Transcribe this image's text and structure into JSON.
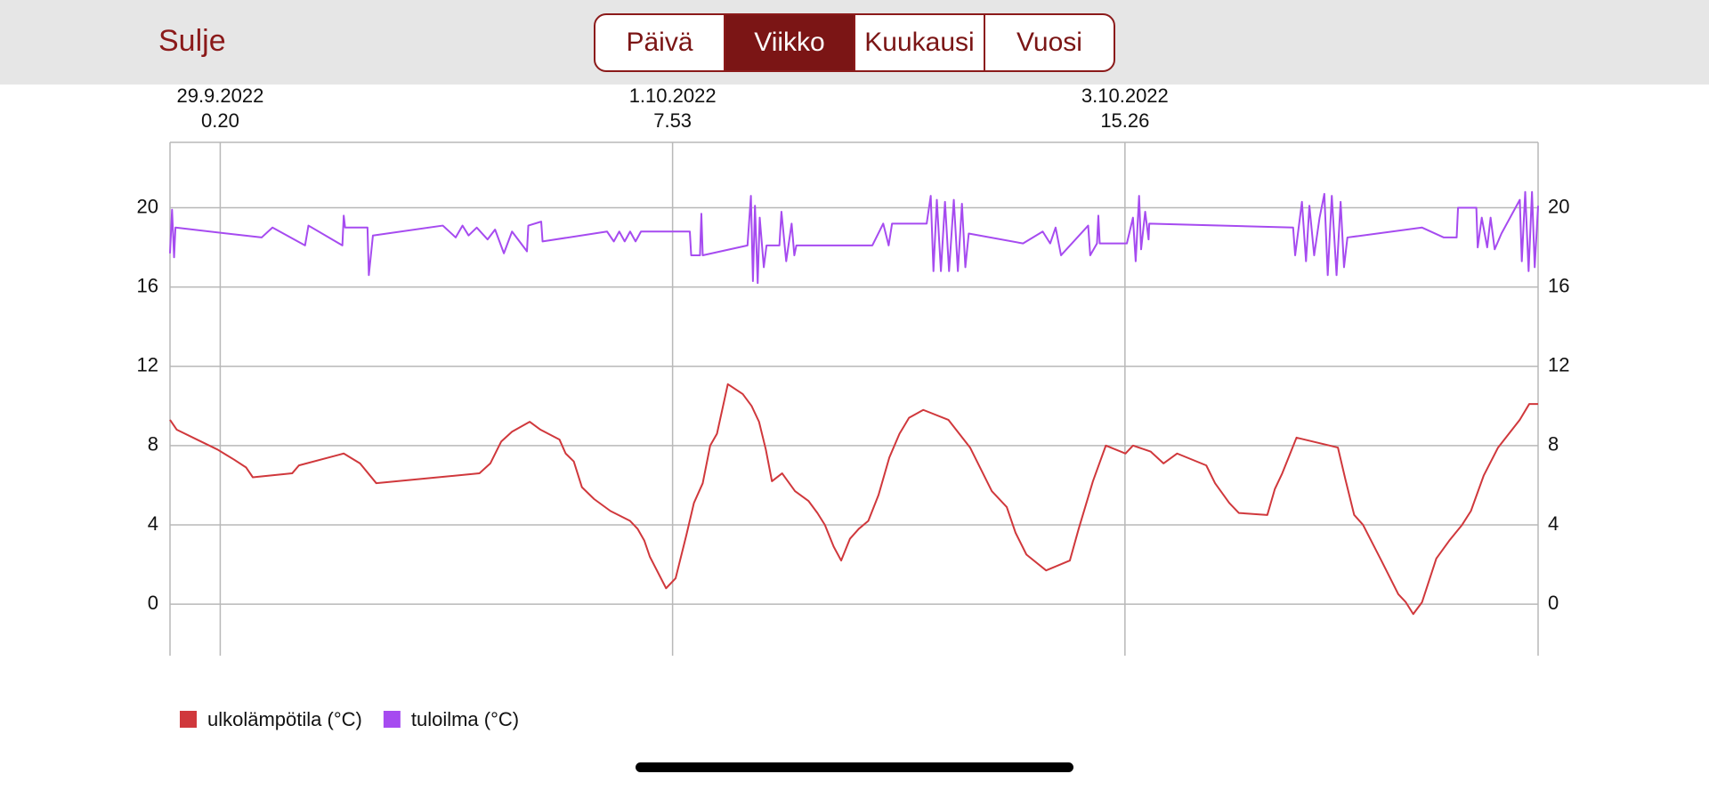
{
  "header": {
    "close_button": "Sulje",
    "tabs": [
      "Päivä",
      "Viikko",
      "Kuukausi",
      "Vuosi"
    ],
    "selected_tab": 1
  },
  "chart_data": {
    "type": "line",
    "grid": true,
    "legend": "bottom-left",
    "xlim": [
      "2022-09-28T18:10",
      "2022-10-05T18:10"
    ],
    "xticks": [
      {
        "value": "2022-09-29T00:20",
        "label": [
          "29.9.2022",
          "0.20"
        ]
      },
      {
        "value": "2022-10-01T07:53",
        "label": [
          "1.10.2022",
          "7.53"
        ]
      },
      {
        "value": "2022-10-03T15:26",
        "label": [
          "3.10.2022",
          "15.26"
        ]
      }
    ],
    "ylim": [
      -2.6,
      23.3
    ],
    "yticks": [
      0,
      4,
      8,
      12,
      16,
      20
    ],
    "y2lim": [
      -2.6,
      23.3
    ],
    "y2ticks": [
      0,
      4,
      8,
      12,
      16,
      20
    ],
    "series": [
      {
        "name": "ulkolämpötila (°C)",
        "color": "#d0383c",
        "x": [
          "2022-09-28T18:10",
          "2022-09-28T19:00",
          "2022-09-28T21:30",
          "2022-09-29T00:00",
          "2022-09-29T02:00",
          "2022-09-29T03:30",
          "2022-09-29T04:20",
          "2022-09-29T09:10",
          "2022-09-29T10:00",
          "2022-09-29T15:30",
          "2022-09-29T17:30",
          "2022-09-29T19:30",
          "2022-09-30T08:10",
          "2022-09-30T09:30",
          "2022-09-30T10:50",
          "2022-09-30T12:10",
          "2022-09-30T14:20",
          "2022-09-30T15:40",
          "2022-09-30T18:00",
          "2022-09-30T18:45",
          "2022-09-30T19:45",
          "2022-09-30T20:45",
          "2022-09-30T22:15",
          "2022-10-01T00:15",
          "2022-10-01T02:40",
          "2022-10-01T03:35",
          "2022-10-01T04:25",
          "2022-10-01T05:05",
          "2022-10-01T07:05",
          "2022-10-01T08:15",
          "2022-10-01T09:35",
          "2022-10-01T10:30",
          "2022-10-01T11:35",
          "2022-10-01T12:30",
          "2022-10-01T13:20",
          "2022-10-01T14:40",
          "2022-10-01T16:30",
          "2022-10-01T17:35",
          "2022-10-01T18:30",
          "2022-10-01T19:20",
          "2022-10-01T20:05",
          "2022-10-01T21:20",
          "2022-10-01T22:55",
          "2022-10-02T00:35",
          "2022-10-02T01:40",
          "2022-10-02T02:35",
          "2022-10-02T03:40",
          "2022-10-02T04:35",
          "2022-10-02T05:40",
          "2022-10-02T06:45",
          "2022-10-02T07:55",
          "2022-10-02T09:10",
          "2022-10-02T10:30",
          "2022-10-02T11:45",
          "2022-10-02T12:55",
          "2022-10-02T14:40",
          "2022-10-02T17:45",
          "2022-10-02T20:25",
          "2022-10-02T23:05",
          "2022-10-03T00:55",
          "2022-10-03T02:00",
          "2022-10-03T03:20",
          "2022-10-03T05:45",
          "2022-10-03T08:40",
          "2022-10-03T09:45",
          "2022-10-03T11:30",
          "2022-10-03T13:05",
          "2022-10-03T15:30",
          "2022-10-03T16:25",
          "2022-10-03T18:35",
          "2022-10-03T20:10",
          "2022-10-03T21:50",
          "2022-10-04T01:25",
          "2022-10-04T02:30",
          "2022-10-04T04:15",
          "2022-10-04T05:25",
          "2022-10-04T08:55",
          "2022-10-04T09:50",
          "2022-10-04T10:45",
          "2022-10-04T12:30",
          "2022-10-04T17:35",
          "2022-10-04T18:30",
          "2022-10-04T19:35",
          "2022-10-04T20:40",
          "2022-10-04T22:55",
          "2022-10-05T01:00",
          "2022-10-05T01:55",
          "2022-10-05T02:50",
          "2022-10-05T03:55",
          "2022-10-05T05:40",
          "2022-10-05T07:15",
          "2022-10-05T08:50",
          "2022-10-05T09:55",
          "2022-10-05T11:30",
          "2022-10-05T13:15",
          "2022-10-05T15:55",
          "2022-10-05T17:05",
          "2022-10-05T18:10"
        ],
        "values": [
          9.3,
          8.8,
          8.3,
          7.8,
          7.3,
          6.9,
          6.4,
          6.6,
          7.0,
          7.6,
          7.1,
          6.1,
          6.6,
          7.1,
          8.2,
          8.7,
          9.2,
          8.8,
          8.3,
          7.6,
          7.2,
          5.9,
          5.3,
          4.7,
          4.2,
          3.8,
          3.2,
          2.4,
          0.8,
          1.3,
          3.5,
          5.1,
          6.1,
          8.0,
          8.6,
          11.1,
          10.6,
          10.0,
          9.2,
          7.8,
          6.2,
          6.6,
          5.7,
          5.2,
          4.6,
          4.0,
          2.9,
          2.2,
          3.3,
          3.8,
          4.2,
          5.5,
          7.4,
          8.6,
          9.4,
          9.8,
          9.3,
          7.9,
          5.7,
          4.9,
          3.6,
          2.5,
          1.7,
          2.2,
          3.8,
          6.2,
          8.0,
          7.6,
          8.0,
          7.7,
          7.1,
          7.6,
          7.0,
          6.1,
          5.1,
          4.6,
          4.5,
          5.8,
          6.6,
          8.4,
          7.9,
          6.3,
          4.5,
          4.0,
          2.2,
          0.5,
          0.1,
          -0.5,
          0.1,
          2.3,
          3.2,
          4.0,
          4.7,
          6.5,
          7.9,
          9.3,
          10.1,
          10.1
        ]
      },
      {
        "name": "tuloilma (°C)",
        "color": "#a64bf0",
        "x": [
          "2022-09-28T18:10",
          "2022-09-28T18:25",
          "2022-09-28T18:40",
          "2022-09-28T18:50",
          "2022-09-29T05:25",
          "2022-09-29T06:45",
          "2022-09-29T10:45",
          "2022-09-29T11:10",
          "2022-09-29T15:20",
          "2022-09-29T15:30",
          "2022-09-29T15:40",
          "2022-09-29T18:25",
          "2022-09-29T18:35",
          "2022-09-29T19:05",
          "2022-09-30T03:40",
          "2022-09-30T05:15",
          "2022-09-30T06:05",
          "2022-09-30T06:50",
          "2022-09-30T07:50",
          "2022-09-30T09:10",
          "2022-09-30T10:05",
          "2022-09-30T11:10",
          "2022-09-30T12:10",
          "2022-09-30T14:00",
          "2022-09-30T14:10",
          "2022-09-30T15:45",
          "2022-09-30T15:55",
          "2022-09-30T23:50",
          "2022-10-01T00:40",
          "2022-10-01T01:20",
          "2022-10-01T02:00",
          "2022-10-01T02:40",
          "2022-10-01T03:20",
          "2022-10-01T04:00",
          "2022-10-01T04:40",
          "2022-10-01T10:00",
          "2022-10-01T10:10",
          "2022-10-01T11:15",
          "2022-10-01T11:25",
          "2022-10-01T11:35",
          "2022-10-01T17:05",
          "2022-10-01T17:30",
          "2022-10-01T17:45",
          "2022-10-01T18:00",
          "2022-10-01T18:20",
          "2022-10-01T18:35",
          "2022-10-01T19:05",
          "2022-10-01T19:25",
          "2022-10-01T21:00",
          "2022-10-01T21:15",
          "2022-10-01T21:50",
          "2022-10-01T22:30",
          "2022-10-01T22:50",
          "2022-10-01T23:05",
          "2022-10-02T08:25",
          "2022-10-02T09:45",
          "2022-10-02T10:25",
          "2022-10-02T10:50",
          "2022-10-02T15:05",
          "2022-10-02T15:35",
          "2022-10-02T15:55",
          "2022-10-02T16:20",
          "2022-10-02T16:50",
          "2022-10-02T17:20",
          "2022-10-02T17:50",
          "2022-10-02T18:25",
          "2022-10-02T18:55",
          "2022-10-02T19:25",
          "2022-10-02T19:50",
          "2022-10-02T20:15",
          "2022-10-03T02:55",
          "2022-10-03T05:20",
          "2022-10-03T06:15",
          "2022-10-03T06:55",
          "2022-10-03T07:35",
          "2022-10-03T10:55",
          "2022-10-03T11:10",
          "2022-10-03T12:00",
          "2022-10-03T12:10",
          "2022-10-03T12:20",
          "2022-10-03T15:40",
          "2022-10-03T16:25",
          "2022-10-03T16:45",
          "2022-10-03T17:10",
          "2022-10-03T17:25",
          "2022-10-03T17:55",
          "2022-10-03T18:20",
          "2022-10-03T18:25",
          "2022-10-04T12:05",
          "2022-10-04T12:20",
          "2022-10-04T13:10",
          "2022-10-04T13:40",
          "2022-10-04T14:05",
          "2022-10-04T14:40",
          "2022-10-04T15:20",
          "2022-10-04T15:55",
          "2022-10-04T16:20",
          "2022-10-04T16:50",
          "2022-10-04T17:25",
          "2022-10-04T17:55",
          "2022-10-04T18:20",
          "2022-10-04T18:45",
          "2022-10-05T03:55",
          "2022-10-05T06:35",
          "2022-10-05T08:10",
          "2022-10-05T08:20",
          "2022-10-05T10:35",
          "2022-10-05T10:45",
          "2022-10-05T11:15",
          "2022-10-05T11:55",
          "2022-10-05T12:20",
          "2022-10-05T12:50",
          "2022-10-05T13:40",
          "2022-10-05T15:55",
          "2022-10-05T16:10",
          "2022-10-05T16:35",
          "2022-10-05T17:00",
          "2022-10-05T17:25",
          "2022-10-05T17:45",
          "2022-10-05T18:10"
        ],
        "values": [
          17.7,
          19.9,
          17.5,
          19.0,
          18.5,
          19.0,
          18.1,
          19.1,
          18.1,
          19.6,
          19.0,
          19.0,
          16.6,
          18.6,
          19.1,
          18.5,
          19.1,
          18.6,
          19.0,
          18.4,
          18.9,
          17.7,
          18.8,
          17.8,
          19.1,
          19.3,
          18.3,
          18.8,
          18.3,
          18.8,
          18.3,
          18.8,
          18.3,
          18.8,
          18.8,
          18.8,
          17.6,
          17.6,
          19.7,
          17.6,
          18.1,
          20.6,
          16.3,
          20.1,
          16.2,
          19.5,
          17.0,
          18.1,
          18.1,
          19.8,
          17.3,
          19.2,
          17.6,
          18.1,
          18.1,
          19.2,
          18.1,
          19.2,
          19.2,
          20.6,
          16.8,
          20.4,
          16.8,
          20.3,
          16.8,
          20.4,
          16.8,
          20.2,
          17.0,
          18.7,
          18.2,
          18.8,
          18.2,
          19.0,
          17.6,
          19.1,
          17.6,
          18.2,
          19.6,
          18.2,
          18.2,
          19.5,
          17.3,
          20.6,
          17.9,
          19.8,
          18.4,
          19.2,
          19.0,
          17.6,
          20.3,
          17.3,
          20.1,
          17.6,
          19.5,
          20.7,
          16.6,
          20.6,
          16.6,
          20.3,
          17.0,
          18.5,
          19.0,
          18.5,
          18.5,
          20.0,
          20.0,
          18.0,
          19.5,
          18.0,
          19.5,
          17.9,
          18.7,
          20.4,
          17.3,
          20.8,
          16.8,
          20.8,
          17.0,
          20.1
        ]
      }
    ]
  }
}
